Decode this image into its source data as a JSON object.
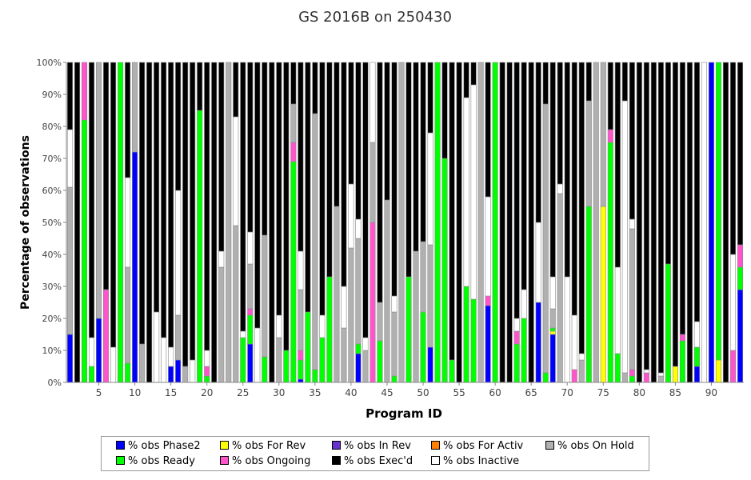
{
  "chart_data": {
    "type": "bar",
    "stacked": true,
    "title": "GS 2016B on 250430",
    "xlabel": "Program ID",
    "ylabel": "Percentage of observations",
    "ylim": [
      0,
      100
    ],
    "y_ticks": [
      "0%",
      "10%",
      "20%",
      "30%",
      "40%",
      "50%",
      "60%",
      "70%",
      "80%",
      "90%",
      "100%"
    ],
    "x_ticks": [
      "5",
      "10",
      "15",
      "20",
      "25",
      "30",
      "35",
      "40",
      "45",
      "50",
      "55",
      "60",
      "65",
      "70",
      "75",
      "80",
      "85",
      "90"
    ],
    "stack_order": [
      "Phase2",
      "ForRev",
      "InRev",
      "ForActiv",
      "Ready",
      "Ongoing",
      "OnHold",
      "Inactive",
      "Execd"
    ],
    "series": [
      {
        "key": "Phase2",
        "name": "% obs Phase2",
        "color": "#0000ff"
      },
      {
        "key": "ForRev",
        "name": "% obs For Rev",
        "color": "#ffff00"
      },
      {
        "key": "InRev",
        "name": "% obs In Rev",
        "color": "#6633cc"
      },
      {
        "key": "ForActiv",
        "name": "% obs For Activ",
        "color": "#ff7f00"
      },
      {
        "key": "OnHold",
        "name": "% obs On Hold",
        "color": "#b0b0b0"
      },
      {
        "key": "Ready",
        "name": "% obs Ready",
        "color": "#00ff00"
      },
      {
        "key": "Ongoing",
        "name": "% obs Ongoing",
        "color": "#ff55cc"
      },
      {
        "key": "Execd",
        "name": "% obs Exec'd",
        "color": "#000000"
      },
      {
        "key": "Inactive",
        "name": "% obs Inactive",
        "color": "#ffffff"
      }
    ],
    "programs": [
      {
        "id": 1,
        "Phase2": 15,
        "OnHold": 46,
        "Inactive": 18,
        "Execd": 21
      },
      {
        "id": 2,
        "Execd": 100
      },
      {
        "id": 3,
        "Ready": 82,
        "Ongoing": 18
      },
      {
        "id": 4,
        "Ready": 5,
        "Inactive": 9,
        "Execd": 86
      },
      {
        "id": 5,
        "Phase2": 20,
        "OnHold": 80
      },
      {
        "id": 6,
        "Ongoing": 29,
        "Execd": 71
      },
      {
        "id": 7,
        "Inactive": 11,
        "Execd": 89
      },
      {
        "id": 8,
        "Ready": 100
      },
      {
        "id": 9,
        "OnHold": 30,
        "Ready": 6,
        "Inactive": 28,
        "Execd": 36
      },
      {
        "id": 10,
        "Phase2": 72,
        "OnHold": 28
      },
      {
        "id": 11,
        "OnHold": 12,
        "Execd": 88
      },
      {
        "id": 12,
        "Execd": 100
      },
      {
        "id": 13,
        "Inactive": 22,
        "Execd": 78
      },
      {
        "id": 14,
        "Inactive": 14,
        "Execd": 86
      },
      {
        "id": 15,
        "Phase2": 5,
        "Inactive": 6,
        "Execd": 89
      },
      {
        "id": 16,
        "Phase2": 7,
        "OnHold": 14,
        "Inactive": 39,
        "Execd": 40
      },
      {
        "id": 17,
        "OnHold": 5,
        "Execd": 95
      },
      {
        "id": 18,
        "Inactive": 7,
        "Execd": 93
      },
      {
        "id": 19,
        "Ready": 85,
        "Execd": 15
      },
      {
        "id": 20,
        "Ready": 2,
        "Ongoing": 3,
        "Inactive": 5,
        "Execd": 90
      },
      {
        "id": 21,
        "Execd": 100
      },
      {
        "id": 22,
        "OnHold": 36,
        "Inactive": 5,
        "Execd": 59
      },
      {
        "id": 23,
        "OnHold": 100
      },
      {
        "id": 24,
        "OnHold": 49,
        "Inactive": 34,
        "Execd": 17
      },
      {
        "id": 25,
        "Ready": 14,
        "Inactive": 2,
        "Execd": 84
      },
      {
        "id": 26,
        "Phase2": 12,
        "OnHold": 14,
        "Ready": 9,
        "Ongoing": 2,
        "Inactive": 10,
        "Execd": 53
      },
      {
        "id": 27,
        "Inactive": 17,
        "Execd": 83
      },
      {
        "id": 28,
        "OnHold": 38,
        "Ready": 8,
        "Execd": 54
      },
      {
        "id": 29,
        "Execd": 100
      },
      {
        "id": 30,
        "OnHold": 14,
        "Inactive": 7,
        "Execd": 79
      },
      {
        "id": 31,
        "Ready": 10,
        "Execd": 90
      },
      {
        "id": 32,
        "OnHold": 12,
        "Ready": 69,
        "Ongoing": 6,
        "Execd": 13
      },
      {
        "id": 33,
        "Phase2": 1,
        "OnHold": 19,
        "Ready": 6,
        "Ongoing": 3,
        "Inactive": 12,
        "Execd": 59
      },
      {
        "id": 34,
        "Ready": 22,
        "Execd": 78
      },
      {
        "id": 35,
        "OnHold": 80,
        "Ready": 4,
        "Execd": 16
      },
      {
        "id": 36,
        "Ready": 14,
        "Inactive": 7,
        "Execd": 79
      },
      {
        "id": 37,
        "Ready": 33,
        "Execd": 67
      },
      {
        "id": 38,
        "OnHold": 55,
        "Execd": 45
      },
      {
        "id": 39,
        "OnHold": 17,
        "Inactive": 13,
        "Execd": 70
      },
      {
        "id": 40,
        "OnHold": 42,
        "Inactive": 20,
        "Execd": 38
      },
      {
        "id": 41,
        "Phase2": 9,
        "OnHold": 33,
        "Ready": 3,
        "Inactive": 6,
        "Execd": 49
      },
      {
        "id": 42,
        "OnHold": 10,
        "Inactive": 4,
        "Execd": 86
      },
      {
        "id": 43,
        "OnHold": 25,
        "Ongoing": 50,
        "Inactive": 25
      },
      {
        "id": 44,
        "Ready": 13,
        "OnHold": 12,
        "Execd": 75
      },
      {
        "id": 45,
        "OnHold": 57,
        "Execd": 43
      },
      {
        "id": 46,
        "OnHold": 20,
        "Ready": 2,
        "Inactive": 5,
        "Execd": 73
      },
      {
        "id": 47,
        "OnHold": 100
      },
      {
        "id": 48,
        "Ready": 33,
        "Execd": 67
      },
      {
        "id": 49,
        "OnHold": 41,
        "Execd": 59
      },
      {
        "id": 50,
        "Ready": 22,
        "OnHold": 22,
        "Execd": 56
      },
      {
        "id": 51,
        "Phase2": 11,
        "OnHold": 32,
        "Inactive": 35,
        "Execd": 22
      },
      {
        "id": 52,
        "Ready": 100
      },
      {
        "id": 53,
        "Ready": 70,
        "Execd": 30
      },
      {
        "id": 54,
        "Ready": 7,
        "Execd": 93
      },
      {
        "id": 55,
        "Execd": 100
      },
      {
        "id": 56,
        "Ready": 30,
        "Inactive": 59,
        "Execd": 11
      },
      {
        "id": 57,
        "Ready": 26,
        "Inactive": 67,
        "Execd": 7
      },
      {
        "id": 58,
        "OnHold": 100
      },
      {
        "id": 59,
        "Phase2": 24,
        "Ongoing": 3,
        "Inactive": 31,
        "Execd": 42
      },
      {
        "id": 60,
        "Ready": 100
      },
      {
        "id": 61,
        "Execd": 100
      },
      {
        "id": 62,
        "Execd": 100
      },
      {
        "id": 63,
        "Ready": 12,
        "Ongoing": 4,
        "Inactive": 4,
        "Execd": 80
      },
      {
        "id": 64,
        "Ready": 20,
        "Inactive": 9,
        "Execd": 71
      },
      {
        "id": 65,
        "Execd": 100
      },
      {
        "id": 66,
        "Phase2": 25,
        "Inactive": 25,
        "Execd": 50
      },
      {
        "id": 67,
        "OnHold": 84,
        "Ready": 3,
        "Execd": 13
      },
      {
        "id": 68,
        "Phase2": 15,
        "ForRev": 1,
        "OnHold": 6,
        "Ready": 1,
        "Inactive": 10,
        "Execd": 67
      },
      {
        "id": 69,
        "OnHold": 59,
        "Inactive": 3,
        "Execd": 38
      },
      {
        "id": 70,
        "Inactive": 33,
        "Execd": 67
      },
      {
        "id": 71,
        "Ongoing": 4,
        "Inactive": 17,
        "Execd": 79
      },
      {
        "id": 72,
        "OnHold": 7,
        "Inactive": 2,
        "Execd": 91
      },
      {
        "id": 73,
        "OnHold": 33,
        "Ready": 55,
        "Execd": 12
      },
      {
        "id": 74,
        "OnHold": 100
      },
      {
        "id": 75,
        "ForRev": 55,
        "OnHold": 45
      },
      {
        "id": 76,
        "Ready": 75,
        "Ongoing": 4,
        "Execd": 21
      },
      {
        "id": 77,
        "Ready": 9,
        "Inactive": 27,
        "Execd": 64
      },
      {
        "id": 78,
        "OnHold": 3,
        "Inactive": 85,
        "Execd": 12
      },
      {
        "id": 79,
        "OnHold": 44,
        "Ready": 2,
        "Ongoing": 2,
        "Inactive": 3,
        "Execd": 49
      },
      {
        "id": 80,
        "Execd": 100
      },
      {
        "id": 81,
        "Ongoing": 3,
        "Inactive": 1,
        "Execd": 96
      },
      {
        "id": 82,
        "Execd": 100
      },
      {
        "id": 83,
        "OnHold": 2,
        "Inactive": 1,
        "Execd": 97
      },
      {
        "id": 84,
        "Ready": 37,
        "Execd": 63
      },
      {
        "id": 85,
        "ForRev": 5,
        "Execd": 95
      },
      {
        "id": 86,
        "Ready": 13,
        "Ongoing": 2,
        "Execd": 85
      },
      {
        "id": 87,
        "Execd": 100
      },
      {
        "id": 88,
        "Phase2": 5,
        "Ready": 6,
        "Inactive": 8,
        "Execd": 81
      },
      {
        "id": 89,
        "Inactive": 100
      },
      {
        "id": 90,
        "Phase2": 100
      },
      {
        "id": 91,
        "ForRev": 7,
        "Ready": 93
      },
      {
        "id": 92,
        "Execd": 100
      },
      {
        "id": 93,
        "Ongoing": 10,
        "Inactive": 30,
        "Execd": 60
      },
      {
        "id": 94,
        "Phase2": 29,
        "Ready": 7,
        "Ongoing": 7,
        "Execd": 57
      }
    ]
  }
}
